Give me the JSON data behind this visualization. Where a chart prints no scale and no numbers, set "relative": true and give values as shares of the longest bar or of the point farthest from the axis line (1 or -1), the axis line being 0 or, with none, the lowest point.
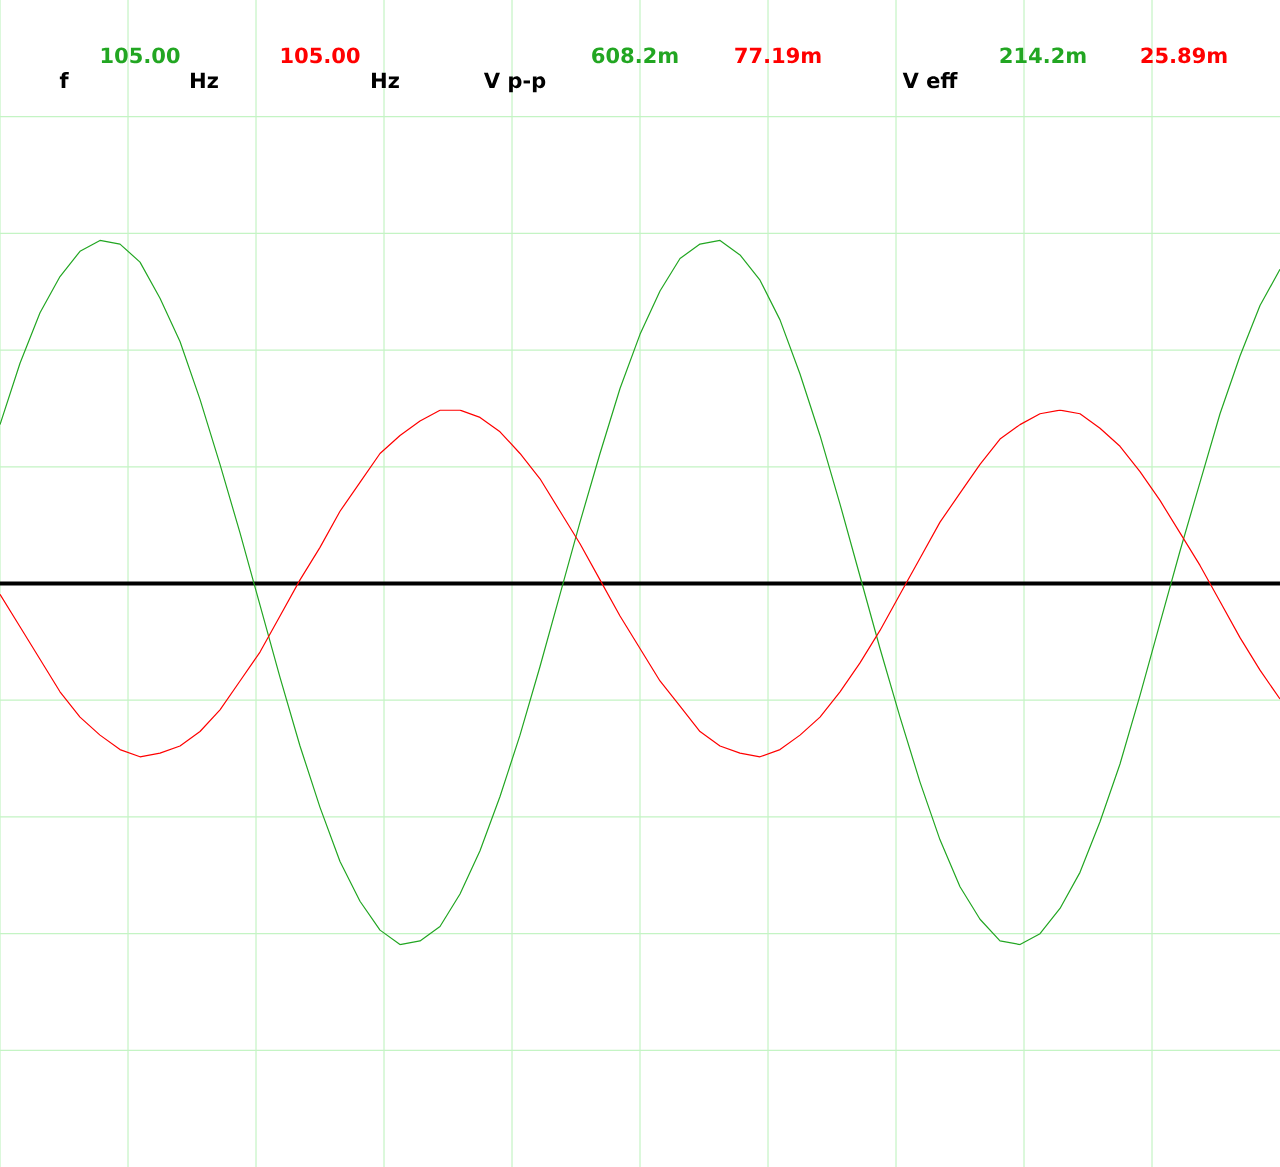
{
  "chart_data": {
    "type": "line",
    "relative": true,
    "grid": true,
    "categories": [
      null,
      null,
      null,
      null,
      null,
      null,
      null,
      null,
      null,
      null,
      null,
      null,
      null,
      null,
      null,
      null,
      null,
      null,
      null,
      null,
      null,
      null,
      null,
      null,
      null,
      null,
      null,
      null,
      null,
      null,
      null,
      null,
      null,
      null,
      null,
      null,
      null,
      null,
      null,
      null,
      null,
      null,
      null,
      null,
      null,
      null,
      null,
      null,
      null,
      null,
      null,
      null,
      null,
      null,
      null,
      null,
      null,
      null,
      null,
      null,
      null,
      null,
      null,
      null,
      null
    ],
    "series": [
      {
        "color": "#22a622",
        "values": [
          0.44,
          0.61,
          0.75,
          0.85,
          0.92,
          0.95,
          0.94,
          0.89,
          0.79,
          0.67,
          0.51,
          0.33,
          0.14,
          -0.06,
          -0.26,
          -0.45,
          -0.62,
          -0.77,
          -0.88,
          -0.96,
          -1,
          -0.99,
          -0.95,
          -0.86,
          -0.74,
          -0.59,
          -0.42,
          -0.23,
          -0.03,
          0.17,
          0.36,
          0.54,
          0.69,
          0.81,
          0.9,
          0.94,
          0.95,
          0.91,
          0.84,
          0.73,
          0.58,
          0.41,
          0.22,
          0.02,
          -0.18,
          -0.37,
          -0.55,
          -0.71,
          -0.84,
          -0.93,
          -0.99,
          -1,
          -0.97,
          -0.9,
          -0.8,
          -0.66,
          -0.5,
          -0.31,
          -0.11,
          0.09,
          0.28,
          0.47,
          0.63,
          0.77,
          0.87
        ]
      },
      {
        "color": "#ff0000",
        "values": [
          -0.03,
          -0.12,
          -0.21,
          -0.3,
          -0.37,
          -0.42,
          -0.46,
          -0.48,
          -0.47,
          -0.45,
          -0.41,
          -0.35,
          -0.27,
          -0.19,
          -0.09,
          0.01,
          0.1,
          0.2,
          0.28,
          0.36,
          0.41,
          0.45,
          0.48,
          0.48,
          0.46,
          0.42,
          0.36,
          0.29,
          0.2,
          0.11,
          0.01,
          -0.09,
          -0.18,
          -0.27,
          -0.34,
          -0.41,
          -0.45,
          -0.47,
          -0.48,
          -0.46,
          -0.42,
          -0.37,
          -0.3,
          -0.22,
          -0.13,
          -0.03,
          0.07,
          0.17,
          0.25,
          0.33,
          0.4,
          0.44,
          0.47,
          0.48,
          0.47,
          0.43,
          0.38,
          0.31,
          0.23,
          0.14,
          0.05,
          -0.05,
          -0.15,
          -0.24,
          -0.32
        ]
      }
    ],
    "annotations": [
      "f",
      "105.00",
      "Hz",
      "105.00",
      "Hz",
      "V p-p",
      "608.2m",
      "77.19m",
      "V eff",
      "214.2m",
      "25.89m"
    ]
  }
}
